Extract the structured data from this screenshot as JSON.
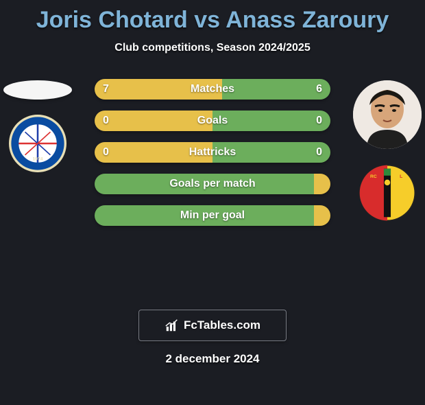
{
  "title": {
    "player1": "Joris Chotard",
    "vs": "vs",
    "player2": "Anass Zaroury",
    "player1_color": "#7fb4d8",
    "vs_color": "#7fb4d8",
    "player2_color": "#7fb4d8"
  },
  "subtitle": "Club competitions, Season 2024/2025",
  "bars": [
    {
      "label": "Matches",
      "left_val": "7",
      "right_val": "6",
      "left_pct": 54,
      "right_pct": 46,
      "left_color": "#e7c04a",
      "right_color": "#6cae5c"
    },
    {
      "label": "Goals",
      "left_val": "0",
      "right_val": "0",
      "left_pct": 50,
      "right_pct": 50,
      "left_color": "#e7c04a",
      "right_color": "#6cae5c"
    },
    {
      "label": "Hattricks",
      "left_val": "0",
      "right_val": "0",
      "left_pct": 50,
      "right_pct": 50,
      "left_color": "#e7c04a",
      "right_color": "#6cae5c"
    },
    {
      "label": "Goals per match",
      "left_val": "",
      "right_val": "",
      "left_pct": 98,
      "right_pct": 2,
      "left_color": "#6cae5c",
      "right_color": "#e7c04a"
    },
    {
      "label": "Min per goal",
      "left_val": "",
      "right_val": "",
      "left_pct": 98,
      "right_pct": 2,
      "left_color": "#6cae5c",
      "right_color": "#e7c04a"
    }
  ],
  "bar_text_color": "#ffffff",
  "bar_label_color": "#ffffff",
  "watermark": "FcTables.com",
  "date": "2 december 2024",
  "background_color": "#1b1d23",
  "club_left": {
    "primary": "#0a4ca1",
    "secondary": "#ffffff",
    "accent": "#e8dfb5",
    "text": "#222222"
  },
  "club_right": {
    "red": "#d82c2c",
    "yellow": "#f6cd2a",
    "black": "#111111",
    "green": "#2f8a3b"
  }
}
